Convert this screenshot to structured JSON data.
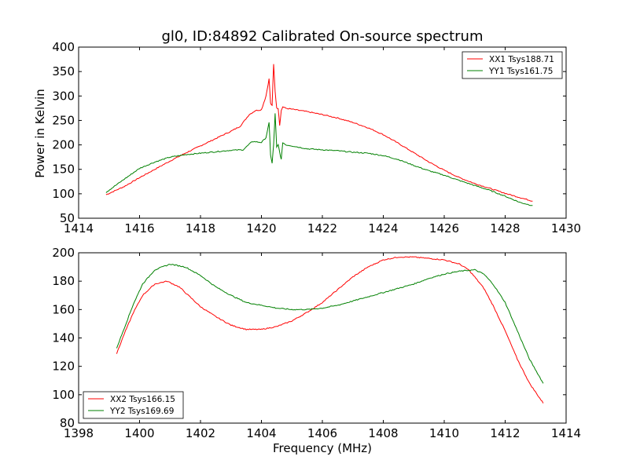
{
  "figure": {
    "title": "gl0, ID:84892 Calibrated On-source spectrum",
    "background": "#ffffff"
  },
  "chart_data": [
    {
      "type": "line",
      "title": "",
      "xlabel": "",
      "ylabel": "Power in Kelvin",
      "xlim": [
        1414,
        1430
      ],
      "ylim": [
        50,
        400
      ],
      "xticks": [
        "1414",
        "1416",
        "1418",
        "1420",
        "1422",
        "1424",
        "1426",
        "1428",
        "1430"
      ],
      "yticks": [
        "50",
        "100",
        "150",
        "200",
        "250",
        "300",
        "350",
        "400"
      ],
      "grid": false,
      "legend": "top-right",
      "series": [
        {
          "name": "XX1 Tsys188.71",
          "color": "#ff0000",
          "x": [
            1414.9,
            1415.5,
            1416.0,
            1416.5,
            1417.0,
            1417.5,
            1418.0,
            1418.5,
            1419.0,
            1419.3,
            1419.6,
            1419.8,
            1420.0,
            1420.15,
            1420.25,
            1420.3,
            1420.35,
            1420.4,
            1420.45,
            1420.5,
            1420.55,
            1420.6,
            1420.65,
            1420.7,
            1420.8,
            1421.0,
            1421.5,
            1422.0,
            1422.5,
            1423.0,
            1423.5,
            1424.0,
            1424.5,
            1425.0,
            1425.5,
            1426.0,
            1426.5,
            1427.0,
            1427.5,
            1428.0,
            1428.5,
            1428.9
          ],
          "y": [
            98,
            115,
            133,
            150,
            167,
            183,
            198,
            213,
            228,
            238,
            262,
            270,
            272,
            300,
            335,
            285,
            280,
            365,
            310,
            275,
            275,
            240,
            270,
            278,
            275,
            273,
            268,
            262,
            255,
            246,
            235,
            221,
            203,
            184,
            165,
            148,
            133,
            121,
            111,
            101,
            92,
            85
          ]
        },
        {
          "name": "YY1 Tsys161.75",
          "color": "#008000",
          "x": [
            1414.9,
            1415.5,
            1416.0,
            1416.5,
            1417.0,
            1417.5,
            1418.0,
            1418.5,
            1419.0,
            1419.4,
            1419.7,
            1420.0,
            1420.15,
            1420.25,
            1420.3,
            1420.35,
            1420.4,
            1420.45,
            1420.5,
            1420.55,
            1420.6,
            1420.65,
            1420.7,
            1420.8,
            1421.0,
            1421.5,
            1422.0,
            1422.5,
            1423.0,
            1423.5,
            1424.0,
            1424.5,
            1425.0,
            1425.5,
            1426.0,
            1426.5,
            1427.0,
            1427.5,
            1428.0,
            1428.5,
            1428.9
          ],
          "y": [
            103,
            130,
            152,
            165,
            175,
            180,
            183,
            186,
            189,
            190,
            207,
            205,
            215,
            245,
            180,
            162,
            200,
            265,
            195,
            200,
            185,
            170,
            205,
            200,
            198,
            192,
            190,
            188,
            185,
            183,
            178,
            170,
            158,
            147,
            138,
            127,
            117,
            107,
            95,
            82,
            76
          ]
        }
      ]
    },
    {
      "type": "line",
      "title": "",
      "xlabel": "Frequency (MHz)",
      "ylabel": "",
      "xlim": [
        1398,
        1414
      ],
      "ylim": [
        80,
        200
      ],
      "xticks": [
        "1398",
        "1400",
        "1402",
        "1404",
        "1406",
        "1408",
        "1410",
        "1412",
        "1414"
      ],
      "yticks": [
        "80",
        "100",
        "120",
        "140",
        "160",
        "180",
        "200"
      ],
      "grid": false,
      "legend": "bottom-left",
      "series": [
        {
          "name": "XX2 Tsys166.15",
          "color": "#ff0000",
          "x": [
            1399.25,
            1399.5,
            1399.8,
            1400.1,
            1400.5,
            1400.9,
            1401.3,
            1401.7,
            1402.0,
            1402.5,
            1403.0,
            1403.5,
            1404.0,
            1404.5,
            1405.0,
            1405.5,
            1406.0,
            1406.5,
            1407.0,
            1407.5,
            1408.0,
            1408.5,
            1409.0,
            1409.5,
            1410.0,
            1410.5,
            1410.8,
            1411.0,
            1411.3,
            1411.6,
            1412.0,
            1412.4,
            1412.8,
            1413.25
          ],
          "y": [
            129,
            143,
            158,
            170,
            178,
            180,
            176,
            168,
            162,
            155,
            149,
            146,
            146,
            148,
            152,
            158,
            165,
            174,
            183,
            190,
            195,
            197,
            197,
            196,
            195,
            192,
            188,
            183,
            175,
            163,
            145,
            125,
            108,
            94
          ]
        },
        {
          "name": "YY2 Tsys169.69",
          "color": "#008000",
          "x": [
            1399.25,
            1399.5,
            1399.8,
            1400.1,
            1400.5,
            1401.0,
            1401.5,
            1402.0,
            1402.5,
            1403.0,
            1403.5,
            1404.0,
            1404.5,
            1405.0,
            1405.5,
            1406.0,
            1406.5,
            1407.0,
            1407.5,
            1408.0,
            1408.5,
            1409.0,
            1409.5,
            1410.0,
            1410.5,
            1411.0,
            1411.3,
            1411.6,
            1412.0,
            1412.4,
            1412.8,
            1413.25
          ],
          "y": [
            133,
            147,
            164,
            178,
            188,
            192,
            190,
            184,
            176,
            170,
            165,
            163,
            161,
            160,
            160,
            161,
            163,
            166,
            169,
            172,
            175,
            178,
            182,
            185,
            187,
            188,
            185,
            178,
            165,
            145,
            125,
            108
          ]
        }
      ]
    }
  ]
}
